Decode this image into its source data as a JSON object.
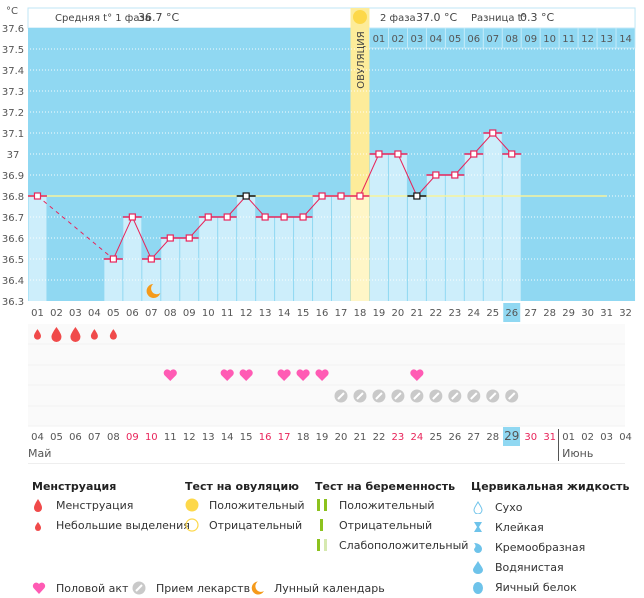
{
  "header": {
    "unit": "°C",
    "phase1_label": "Средняя t° 1 фаза",
    "phase1_value": "36.7 °C",
    "phase2_label": "2 фаза",
    "phase2_value": "37.0 °C",
    "diff_label": "Разница t°",
    "diff_value": "0.3 °C",
    "ovulation_label": "ОВУЛЯЦИЯ"
  },
  "chart_data": {
    "type": "line",
    "title": "",
    "ylabel": "°C",
    "ylim": [
      36.3,
      37.6
    ],
    "yticks": [
      "37.6",
      "37.5",
      "37.4",
      "37.3",
      "37.2",
      "37.1",
      "37",
      "36.9",
      "36.8",
      "36.7",
      "36.6",
      "36.5",
      "36.4",
      "36.3"
    ],
    "cycle_days": [
      "01",
      "02",
      "03",
      "04",
      "05",
      "06",
      "07",
      "08",
      "09",
      "10",
      "11",
      "12",
      "13",
      "14",
      "15",
      "16",
      "17",
      "18",
      "19",
      "20",
      "21",
      "22",
      "23",
      "24",
      "25",
      "26",
      "27",
      "28",
      "29",
      "30",
      "31",
      "32"
    ],
    "phase2_days": [
      "01",
      "02",
      "03",
      "04",
      "05",
      "06",
      "07",
      "08",
      "09",
      "10",
      "11",
      "12",
      "13",
      "14"
    ],
    "temperatures": [
      36.8,
      null,
      null,
      null,
      36.5,
      36.7,
      36.5,
      36.6,
      36.6,
      36.7,
      36.7,
      36.8,
      36.7,
      36.7,
      36.7,
      36.8,
      36.8,
      36.8,
      37.0,
      37.0,
      36.8,
      36.9,
      36.9,
      37.0,
      37.1,
      37.0,
      null,
      null,
      null,
      null,
      null,
      null
    ],
    "excluded_days": [
      12,
      21
    ],
    "coverline": 36.8,
    "ovulation_day": 18,
    "current_day": 26,
    "moon_day": 7,
    "grid": true
  },
  "calendar": {
    "dates": [
      "04",
      "05",
      "06",
      "07",
      "08",
      "09",
      "10",
      "11",
      "12",
      "13",
      "14",
      "15",
      "16",
      "17",
      "18",
      "19",
      "20",
      "21",
      "22",
      "23",
      "24",
      "25",
      "26",
      "27",
      "28",
      "29",
      "30",
      "31",
      "01",
      "02",
      "03",
      "04"
    ],
    "weekend_indices": [
      5,
      6,
      12,
      13,
      19,
      20,
      26,
      27
    ],
    "today_index": 25,
    "month_may": "Май",
    "month_june": "Июнь",
    "menstruation": [
      {
        "day": 1,
        "size": "small"
      },
      {
        "day": 2,
        "size": "large"
      },
      {
        "day": 3,
        "size": "large"
      },
      {
        "day": 4,
        "size": "small"
      },
      {
        "day": 5,
        "size": "small"
      }
    ],
    "intercourse_days": [
      8,
      11,
      12,
      14,
      15,
      16,
      21
    ],
    "medication_days": [
      17,
      18,
      19,
      20,
      21,
      22,
      23,
      24,
      25,
      26
    ]
  },
  "legend": {
    "menstruation_title": "Менструация",
    "menstruation_items": [
      "Менструация",
      "Небольшие выделения"
    ],
    "ovulation_test_title": "Тест на овуляцию",
    "ovulation_test_items": [
      "Положительный",
      "Отрицательный"
    ],
    "pregnancy_test_title": "Тест на беременность",
    "pregnancy_test_items": [
      "Положительный",
      "Отрицательный",
      "Слабоположительный"
    ],
    "cervical_title": "Цервикальная жидкость",
    "cervical_items": [
      "Сухо",
      "Клейкая",
      "Кремообразная",
      "Водянистая",
      "Яичный белок"
    ],
    "bottom_items": [
      "Половой акт",
      "Прием лекарств",
      "Лунный календарь"
    ]
  },
  "colors": {
    "plot_bg": "#90d8f2",
    "bar_fill": "#cdeefb",
    "line": "#e8245a",
    "ovulation": "#fdec9a",
    "coverline": "#f6f39c",
    "today": "#90d8f2",
    "weekend_text": "#e8245a",
    "menstruation": "#f04a4a",
    "heart": "#ff5bb4",
    "pill": "#c9c9c9",
    "moon": "#f59a1a",
    "sun": "#fdd84a",
    "preg_green": "#8cc21e",
    "cervical": "#6ec3ea"
  }
}
